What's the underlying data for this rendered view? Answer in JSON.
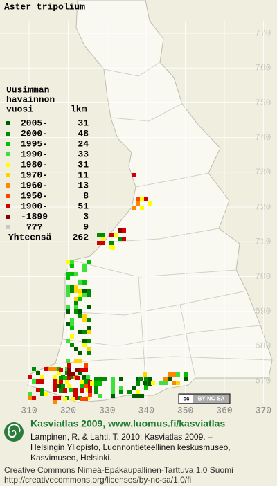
{
  "title": "Aster tripolium",
  "legend": {
    "heading": [
      "Uusimman",
      "havainnon",
      "vuosi"
    ],
    "count_heading": "lkm",
    "rows": [
      {
        "label": "2005-",
        "count": 31,
        "color": "#005a00"
      },
      {
        "label": "2000-",
        "count": 48,
        "color": "#008c00"
      },
      {
        "label": "1995-",
        "count": 24,
        "color": "#00c000"
      },
      {
        "label": "1990-",
        "count": 33,
        "color": "#3ee03e"
      },
      {
        "label": "1980-",
        "count": 31,
        "color": "#ffff00"
      },
      {
        "label": "1970-",
        "count": 11,
        "color": "#ffd400"
      },
      {
        "label": "1960-",
        "count": 13,
        "color": "#ff8800"
      },
      {
        "label": "1950-",
        "count": 8,
        "color": "#ff4400"
      },
      {
        "label": "1900-",
        "count": 51,
        "color": "#d00000"
      },
      {
        "label": "-1899",
        "count": 3,
        "color": "#880000"
      },
      {
        "label": "???",
        "count": 9,
        "color": "#c8c8c8"
      }
    ],
    "total_label": "Yhteensä",
    "total": 262
  },
  "axes": {
    "yticks": [
      770,
      760,
      750,
      740,
      730,
      720,
      710,
      700,
      690,
      680,
      670
    ],
    "xticks": [
      310,
      320,
      330,
      340,
      350,
      360,
      370
    ]
  },
  "badge": {
    "icon": "cc",
    "text": "BY-NC-SA"
  },
  "footer": {
    "headline": "Kasviatlas 2009, www.luomus.fi/kasviatlas",
    "citation": [
      "Lampinen, R. & Lahti, T. 2010: Kasviatlas 2009. –",
      "Helsingin Yliopisto, Luonnontieteellinen keskusmuseo,",
      "Kasvimuseo, Helsinki."
    ],
    "license": [
      "Creative Commons Nimeä-Epäkaupallinen-Tarttuva 1.0 Suomi",
      "http://creativecommons.org/licenses/by-nc-sa/1.0/fi"
    ]
  }
}
